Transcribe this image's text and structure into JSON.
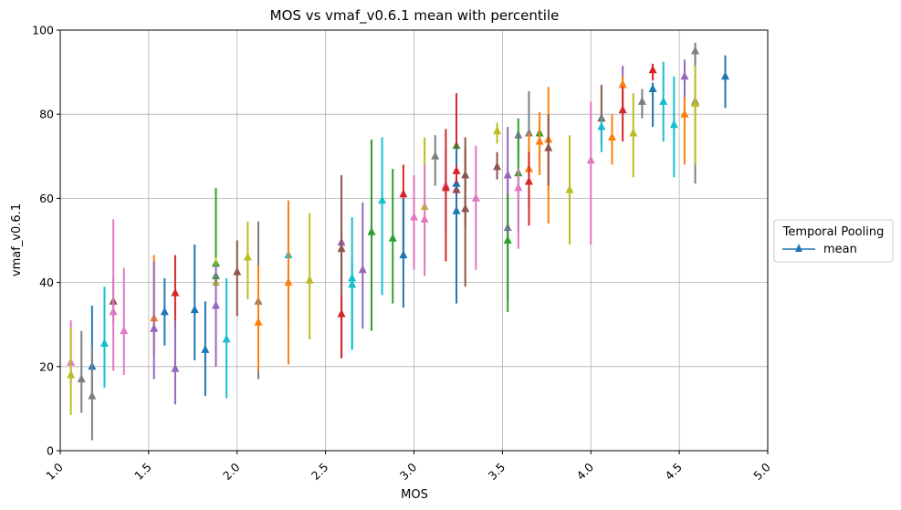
{
  "chart_data": {
    "type": "scatter",
    "title": "MOS vs vmaf_v0.6.1 mean with percentile",
    "xlabel": "MOS",
    "ylabel": "vmaf_v0.6.1",
    "xlim": [
      1.0,
      5.0
    ],
    "ylim": [
      0,
      100
    ],
    "xticks": [
      "1.0",
      "1.5",
      "2.0",
      "2.5",
      "3.0",
      "3.5",
      "4.0",
      "4.5",
      "5.0"
    ],
    "yticks": [
      "0",
      "20",
      "40",
      "60",
      "80",
      "100"
    ],
    "grid": true,
    "legend": {
      "title": "Temporal Pooling",
      "entries": [
        "mean"
      ],
      "placement": "outside-right"
    },
    "marker": "triangle-up",
    "palette": [
      "#1f77b4",
      "#ff7f0e",
      "#2ca02c",
      "#d62728",
      "#9467bd",
      "#8c564b",
      "#e377c2",
      "#7f7f7f",
      "#bcbd22",
      "#17becf"
    ],
    "points": [
      {
        "x": 1.06,
        "y": 21,
        "lo": 16,
        "hi": 31,
        "color": "#e377c2"
      },
      {
        "x": 1.06,
        "y": 18,
        "lo": 8.5,
        "hi": 29,
        "color": "#bcbd22"
      },
      {
        "x": 1.12,
        "y": 17,
        "lo": 9,
        "hi": 28.5,
        "color": "#7f7f7f"
      },
      {
        "x": 1.18,
        "y": 20,
        "lo": 13,
        "hi": 34.5,
        "color": "#1f77b4"
      },
      {
        "x": 1.18,
        "y": 13,
        "lo": 2.5,
        "hi": 25,
        "color": "#7f7f7f"
      },
      {
        "x": 1.25,
        "y": 25.5,
        "lo": 15,
        "hi": 39,
        "color": "#17becf"
      },
      {
        "x": 1.3,
        "y": 35.5,
        "lo": 30,
        "hi": 41,
        "color": "#8c564b"
      },
      {
        "x": 1.3,
        "y": 33,
        "lo": 19,
        "hi": 55,
        "color": "#e377c2"
      },
      {
        "x": 1.36,
        "y": 28.5,
        "lo": 18,
        "hi": 43.5,
        "color": "#e377c2"
      },
      {
        "x": 1.53,
        "y": 31.5,
        "lo": 23,
        "hi": 46.5,
        "color": "#ff7f0e"
      },
      {
        "x": 1.53,
        "y": 29,
        "lo": 17,
        "hi": 45,
        "color": "#9467bd"
      },
      {
        "x": 1.59,
        "y": 33,
        "lo": 25,
        "hi": 41,
        "color": "#1f77b4"
      },
      {
        "x": 1.65,
        "y": 37.5,
        "lo": 29,
        "hi": 46.5,
        "color": "#d62728"
      },
      {
        "x": 1.65,
        "y": 19.5,
        "lo": 11,
        "hi": 31,
        "color": "#9467bd"
      },
      {
        "x": 1.76,
        "y": 33.5,
        "lo": 21.5,
        "hi": 49,
        "color": "#1f77b4"
      },
      {
        "x": 1.82,
        "y": 24,
        "lo": 13,
        "hi": 35.5,
        "color": "#1f77b4"
      },
      {
        "x": 1.88,
        "y": 44.5,
        "lo": 31,
        "hi": 62.5,
        "color": "#2ca02c"
      },
      {
        "x": 1.88,
        "y": 41.5,
        "lo": 36,
        "hi": 45,
        "color": "#2ca02c"
      },
      {
        "x": 1.88,
        "y": 40,
        "lo": 29,
        "hi": 46,
        "color": "#bcbd22"
      },
      {
        "x": 1.88,
        "y": 34.5,
        "lo": 20,
        "hi": 44,
        "color": "#9467bd"
      },
      {
        "x": 1.94,
        "y": 26.5,
        "lo": 12.5,
        "hi": 41,
        "color": "#17becf"
      },
      {
        "x": 2.0,
        "y": 42.5,
        "lo": 32,
        "hi": 50,
        "color": "#8c564b"
      },
      {
        "x": 2.06,
        "y": 46,
        "lo": 36,
        "hi": 54.5,
        "color": "#bcbd22"
      },
      {
        "x": 2.12,
        "y": 35.5,
        "lo": 17,
        "hi": 54.5,
        "color": "#7f7f7f"
      },
      {
        "x": 2.12,
        "y": 30.5,
        "lo": 19,
        "hi": 44,
        "color": "#ff7f0e"
      },
      {
        "x": 2.29,
        "y": 46.5,
        "lo": 31,
        "hi": 58,
        "color": "#17becf"
      },
      {
        "x": 2.29,
        "y": 40,
        "lo": 20.5,
        "hi": 59.5,
        "color": "#ff7f0e"
      },
      {
        "x": 2.41,
        "y": 40.5,
        "lo": 26.5,
        "hi": 56.5,
        "color": "#bcbd22"
      },
      {
        "x": 2.59,
        "y": 49.5,
        "lo": 39,
        "hi": 52,
        "color": "#9467bd"
      },
      {
        "x": 2.59,
        "y": 48,
        "lo": 22,
        "hi": 65.5,
        "color": "#8c564b"
      },
      {
        "x": 2.59,
        "y": 32.5,
        "lo": 22,
        "hi": 37,
        "color": "#d62728"
      },
      {
        "x": 2.65,
        "y": 41,
        "lo": 24,
        "hi": 55.5,
        "color": "#17becf"
      },
      {
        "x": 2.65,
        "y": 39.5,
        "lo": 24,
        "hi": 45,
        "color": "#17becf"
      },
      {
        "x": 2.71,
        "y": 43,
        "lo": 29,
        "hi": 59,
        "color": "#9467bd"
      },
      {
        "x": 2.76,
        "y": 52,
        "lo": 28.5,
        "hi": 74,
        "color": "#2ca02c"
      },
      {
        "x": 2.82,
        "y": 59.5,
        "lo": 37,
        "hi": 74.5,
        "color": "#17becf"
      },
      {
        "x": 2.88,
        "y": 50.5,
        "lo": 35,
        "hi": 67,
        "color": "#2ca02c"
      },
      {
        "x": 2.94,
        "y": 61,
        "lo": 47,
        "hi": 68,
        "color": "#d62728"
      },
      {
        "x": 2.94,
        "y": 46.5,
        "lo": 34,
        "hi": 60,
        "color": "#1f77b4"
      },
      {
        "x": 3.0,
        "y": 55.5,
        "lo": 43,
        "hi": 65.5,
        "color": "#e377c2"
      },
      {
        "x": 3.06,
        "y": 58,
        "lo": 44,
        "hi": 74.5,
        "color": "#bcbd22"
      },
      {
        "x": 3.06,
        "y": 55,
        "lo": 41.5,
        "hi": 68,
        "color": "#e377c2"
      },
      {
        "x": 3.12,
        "y": 70,
        "lo": 63,
        "hi": 75,
        "color": "#7f7f7f"
      },
      {
        "x": 3.18,
        "y": 63,
        "lo": 52,
        "hi": 72,
        "color": "#e377c2"
      },
      {
        "x": 3.18,
        "y": 62.5,
        "lo": 45,
        "hi": 76.5,
        "color": "#d62728"
      },
      {
        "x": 3.24,
        "y": 72.5,
        "lo": 57,
        "hi": 79,
        "color": "#2ca02c"
      },
      {
        "x": 3.24,
        "y": 66.5,
        "lo": 47,
        "hi": 85,
        "color": "#d62728"
      },
      {
        "x": 3.24,
        "y": 63.5,
        "lo": 42,
        "hi": 72,
        "color": "#1f77b4"
      },
      {
        "x": 3.24,
        "y": 62,
        "lo": 43,
        "hi": 68,
        "color": "#d62728"
      },
      {
        "x": 3.24,
        "y": 57,
        "lo": 35,
        "hi": 63.5,
        "color": "#1f77b4"
      },
      {
        "x": 3.29,
        "y": 65.5,
        "lo": 53,
        "hi": 74.5,
        "color": "#8c564b"
      },
      {
        "x": 3.29,
        "y": 57.5,
        "lo": 39,
        "hi": 72,
        "color": "#8c564b"
      },
      {
        "x": 3.35,
        "y": 60,
        "lo": 43,
        "hi": 72.5,
        "color": "#e377c2"
      },
      {
        "x": 3.47,
        "y": 76,
        "lo": 73,
        "hi": 78,
        "color": "#bcbd22"
      },
      {
        "x": 3.47,
        "y": 67.5,
        "lo": 64.5,
        "hi": 71,
        "color": "#8c564b"
      },
      {
        "x": 3.53,
        "y": 65.5,
        "lo": 50,
        "hi": 77,
        "color": "#9467bd"
      },
      {
        "x": 3.53,
        "y": 53,
        "lo": 36,
        "hi": 65.5,
        "color": "#9467bd"
      },
      {
        "x": 3.53,
        "y": 50,
        "lo": 33,
        "hi": 61,
        "color": "#2ca02c"
      },
      {
        "x": 3.59,
        "y": 75,
        "lo": 69,
        "hi": 76,
        "color": "#9467bd"
      },
      {
        "x": 3.59,
        "y": 66,
        "lo": 52,
        "hi": 79,
        "color": "#2ca02c"
      },
      {
        "x": 3.59,
        "y": 62.5,
        "lo": 48,
        "hi": 67,
        "color": "#e377c2"
      },
      {
        "x": 3.65,
        "y": 75.5,
        "lo": 67,
        "hi": 85.5,
        "color": "#7f7f7f"
      },
      {
        "x": 3.65,
        "y": 67,
        "lo": 58,
        "hi": 75.5,
        "color": "#ff7f0e"
      },
      {
        "x": 3.65,
        "y": 64,
        "lo": 53.5,
        "hi": 71,
        "color": "#d62728"
      },
      {
        "x": 3.71,
        "y": 75.5,
        "lo": 70,
        "hi": 78,
        "color": "#2ca02c"
      },
      {
        "x": 3.71,
        "y": 73.5,
        "lo": 65.5,
        "hi": 80.5,
        "color": "#ff7f0e"
      },
      {
        "x": 3.76,
        "y": 74,
        "lo": 54,
        "hi": 86.5,
        "color": "#ff7f0e"
      },
      {
        "x": 3.76,
        "y": 72,
        "lo": 63,
        "hi": 80,
        "color": "#8c564b"
      },
      {
        "x": 3.88,
        "y": 62,
        "lo": 49,
        "hi": 75,
        "color": "#bcbd22"
      },
      {
        "x": 4.0,
        "y": 69,
        "lo": 49,
        "hi": 83,
        "color": "#e377c2"
      },
      {
        "x": 4.06,
        "y": 79,
        "lo": 73,
        "hi": 87,
        "color": "#8c564b"
      },
      {
        "x": 4.06,
        "y": 77,
        "lo": 71,
        "hi": 79.5,
        "color": "#17becf"
      },
      {
        "x": 4.12,
        "y": 74.5,
        "lo": 68,
        "hi": 80,
        "color": "#ff7f0e"
      },
      {
        "x": 4.18,
        "y": 87,
        "lo": 80,
        "hi": 91.5,
        "color": "#9467bd"
      },
      {
        "x": 4.18,
        "y": 87,
        "lo": 82,
        "hi": 89,
        "color": "#ff7f0e"
      },
      {
        "x": 4.18,
        "y": 81,
        "lo": 73.5,
        "hi": 86.5,
        "color": "#d62728"
      },
      {
        "x": 4.24,
        "y": 75.5,
        "lo": 65,
        "hi": 85,
        "color": "#bcbd22"
      },
      {
        "x": 4.29,
        "y": 83,
        "lo": 79,
        "hi": 86,
        "color": "#7f7f7f"
      },
      {
        "x": 4.35,
        "y": 90.5,
        "lo": 88,
        "hi": 92,
        "color": "#d62728"
      },
      {
        "x": 4.35,
        "y": 86,
        "lo": 77,
        "hi": 87.5,
        "color": "#1f77b4"
      },
      {
        "x": 4.41,
        "y": 83,
        "lo": 73.5,
        "hi": 92.5,
        "color": "#17becf"
      },
      {
        "x": 4.47,
        "y": 77.5,
        "lo": 65,
        "hi": 89,
        "color": "#17becf"
      },
      {
        "x": 4.53,
        "y": 89,
        "lo": 80.5,
        "hi": 93,
        "color": "#9467bd"
      },
      {
        "x": 4.53,
        "y": 80,
        "lo": 68,
        "hi": 84,
        "color": "#ff7f0e"
      },
      {
        "x": 4.59,
        "y": 95,
        "lo": 91.5,
        "hi": 97,
        "color": "#7f7f7f"
      },
      {
        "x": 4.59,
        "y": 83,
        "lo": 63.5,
        "hi": 95,
        "color": "#7f7f7f"
      },
      {
        "x": 4.59,
        "y": 82.5,
        "lo": 68,
        "hi": 91.5,
        "color": "#bcbd22"
      },
      {
        "x": 4.76,
        "y": 89,
        "lo": 81.5,
        "hi": 94,
        "color": "#1f77b4"
      }
    ]
  }
}
